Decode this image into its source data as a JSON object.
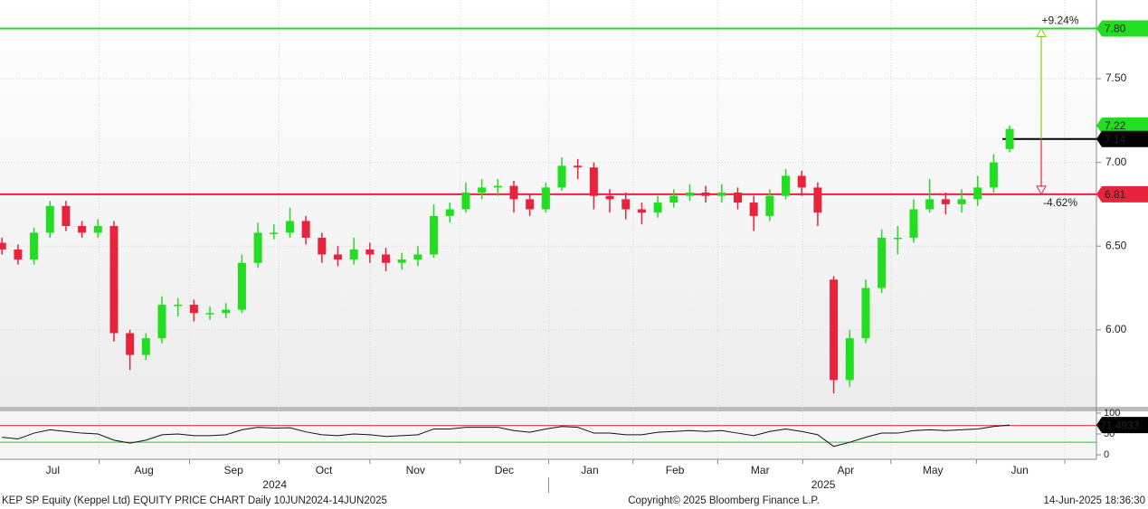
{
  "chart_data": {
    "type": "candlestick",
    "x": [
      0,
      4,
      8,
      12,
      16,
      20,
      24,
      28,
      32,
      36,
      40,
      44,
      48,
      52,
      56,
      60,
      64,
      68,
      72,
      76,
      80,
      84,
      88,
      92,
      96,
      100,
      104,
      108,
      112,
      116,
      120,
      124,
      128,
      132,
      136,
      140,
      144,
      148,
      152,
      156,
      160,
      164,
      168,
      172,
      176,
      180,
      184,
      188,
      192,
      196,
      200,
      204,
      208,
      212,
      216,
      220,
      224,
      228,
      232,
      236,
      240,
      244,
      248,
      252
    ],
    "open": [
      6.52,
      6.48,
      6.42,
      6.58,
      6.74,
      6.62,
      6.58,
      6.62,
      5.98,
      5.85,
      5.95,
      6.15,
      6.15,
      6.1,
      6.1,
      6.12,
      6.4,
      6.58,
      6.58,
      6.65,
      6.55,
      6.45,
      6.42,
      6.48,
      6.45,
      6.4,
      6.42,
      6.45,
      6.68,
      6.72,
      6.82,
      6.85,
      6.86,
      6.78,
      6.72,
      6.85,
      6.98,
      6.97,
      6.8,
      6.78,
      6.72,
      6.7,
      6.76,
      6.8,
      6.82,
      6.8,
      6.82,
      6.76,
      6.68,
      6.8,
      6.92,
      6.85,
      6.3,
      5.7,
      5.95,
      6.25,
      6.55,
      6.55,
      6.72,
      6.78,
      6.75,
      6.78,
      6.85,
      7.08
    ],
    "high": [
      6.55,
      6.51,
      6.61,
      6.77,
      6.77,
      6.65,
      6.66,
      6.65,
      6.0,
      5.98,
      6.2,
      6.19,
      6.18,
      6.14,
      6.16,
      6.45,
      6.64,
      6.63,
      6.73,
      6.68,
      6.58,
      6.5,
      6.55,
      6.52,
      6.49,
      6.46,
      6.5,
      6.75,
      6.76,
      6.88,
      6.9,
      6.9,
      6.89,
      6.81,
      6.88,
      7.03,
      7.02,
      7.0,
      6.84,
      6.82,
      6.76,
      6.8,
      6.84,
      6.87,
      6.86,
      6.87,
      6.85,
      6.8,
      6.84,
      6.96,
      6.95,
      6.88,
      6.32,
      6.0,
      6.3,
      6.6,
      6.62,
      6.78,
      6.9,
      6.82,
      6.84,
      6.92,
      7.05,
      7.22
    ],
    "low": [
      6.45,
      6.39,
      6.39,
      6.55,
      6.59,
      6.55,
      6.55,
      5.93,
      5.76,
      5.82,
      5.92,
      6.08,
      6.05,
      6.06,
      6.07,
      6.1,
      6.37,
      6.54,
      6.55,
      6.51,
      6.4,
      6.38,
      6.39,
      6.4,
      6.35,
      6.36,
      6.38,
      6.43,
      6.64,
      6.7,
      6.78,
      6.8,
      6.7,
      6.68,
      6.7,
      6.83,
      6.9,
      6.72,
      6.7,
      6.66,
      6.63,
      6.67,
      6.73,
      6.77,
      6.76,
      6.76,
      6.72,
      6.59,
      6.65,
      6.78,
      6.8,
      6.62,
      5.62,
      5.66,
      5.92,
      6.22,
      6.45,
      6.52,
      6.7,
      6.69,
      6.7,
      6.74,
      6.82,
      7.06
    ],
    "close": [
      6.48,
      6.42,
      6.58,
      6.74,
      6.62,
      6.58,
      6.62,
      5.98,
      5.85,
      5.95,
      6.15,
      6.15,
      6.1,
      6.1,
      6.12,
      6.4,
      6.58,
      6.58,
      6.65,
      6.55,
      6.45,
      6.42,
      6.48,
      6.45,
      6.4,
      6.42,
      6.45,
      6.68,
      6.72,
      6.82,
      6.85,
      6.86,
      6.78,
      6.72,
      6.85,
      6.98,
      6.97,
      6.8,
      6.78,
      6.72,
      6.7,
      6.76,
      6.8,
      6.82,
      6.8,
      6.82,
      6.76,
      6.68,
      6.8,
      6.92,
      6.85,
      6.7,
      5.7,
      5.95,
      6.25,
      6.55,
      6.55,
      6.72,
      6.78,
      6.75,
      6.78,
      6.85,
      7.0,
      7.2
    ],
    "up_color": "#22dd22",
    "down_color": "#e8243c",
    "xlim": [
      -0.5,
      273.7
    ],
    "ylim": [
      5.54,
      7.97
    ],
    "yticks": [
      {
        "value": 6,
        "label": "6.00"
      },
      {
        "value": 6.5,
        "label": "6.50"
      },
      {
        "value": 7,
        "label": "7.00"
      },
      {
        "value": 7.5,
        "label": "7.50"
      }
    ],
    "xticks": [
      {
        "value": 12.7,
        "label": "Jul"
      },
      {
        "value": 35.5,
        "label": "Aug"
      },
      {
        "value": 57.9,
        "label": "Sep"
      },
      {
        "value": 80.5,
        "label": "Oct"
      },
      {
        "value": 103.4,
        "label": "Nov"
      },
      {
        "value": 125.6,
        "label": "Dec"
      },
      {
        "value": 147,
        "label": "Jan"
      },
      {
        "value": 168.3,
        "label": "Feb"
      },
      {
        "value": 189.6,
        "label": "Mar"
      },
      {
        "value": 211,
        "label": "Apr"
      },
      {
        "value": 232.8,
        "label": "May"
      },
      {
        "value": 254.5,
        "label": "Jun"
      }
    ],
    "xgrid": [
      24.3,
      46.9,
      69.3,
      92,
      114.6,
      136.7,
      157.8,
      179,
      200.3,
      222.3,
      243.7,
      265.8
    ],
    "years": [
      {
        "value": 68.2,
        "label": "2024"
      },
      {
        "value": 205.4,
        "label": "2025"
      }
    ],
    "year_separator": 136.7,
    "hlines": [
      {
        "value": 7.8,
        "color": "#22dd22"
      },
      {
        "value": 6.81,
        "color": "#e8243c"
      },
      {
        "value": 7.14,
        "color": "#000000",
        "from": 250.2
      }
    ],
    "annotations": [
      {
        "text": "+9.24%",
        "color": "#88cc22"
      },
      {
        "text": "-4.62%",
        "color": "#e8243c"
      }
    ],
    "tags": [
      {
        "value": 7.8,
        "label": "7.80",
        "color": "#22dd22"
      },
      {
        "value": 7.22,
        "color": "#22dd22"
      },
      {
        "value": 7.14,
        "color": "#000000"
      },
      {
        "value": 6.81,
        "color": "#e8243c"
      }
    ],
    "rsi": {
      "values": [
        42,
        38,
        52,
        60,
        56,
        52,
        50,
        35,
        28,
        35,
        48,
        50,
        46,
        46,
        48,
        60,
        66,
        64,
        65,
        55,
        48,
        46,
        50,
        48,
        44,
        46,
        48,
        62,
        62,
        66,
        66,
        66,
        58,
        54,
        62,
        68,
        66,
        52,
        52,
        48,
        48,
        54,
        56,
        58,
        56,
        58,
        52,
        46,
        56,
        62,
        56,
        48,
        20,
        30,
        42,
        52,
        52,
        58,
        60,
        58,
        60,
        62,
        68,
        71.4933
      ],
      "ylim": [
        -10.9,
        104.3
      ],
      "yticks": [
        0,
        50,
        100
      ],
      "upper": 70,
      "lower": 30,
      "last_label": "71.4933"
    },
    "footer": {
      "left": "KEP SP Equity (Keppel Ltd) EQUITY PRICE CHART  Daily 10JUN2024-14JUN2025",
      "center": "Copyright© 2025 Bloomberg Finance L.P.",
      "right": "14-Jun-2025 18:36:30"
    }
  }
}
